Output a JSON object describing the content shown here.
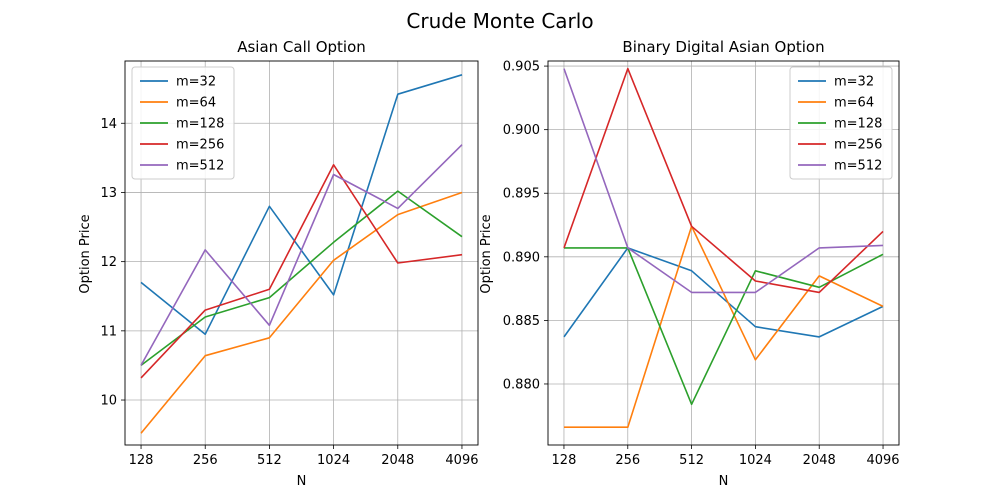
{
  "suptitle": "Crude Monte Carlo",
  "chart_data": [
    {
      "type": "line",
      "title": "Asian Call Option",
      "xlabel": "N",
      "ylabel": "Option Price",
      "x": [
        128,
        256,
        512,
        1024,
        2048,
        4096
      ],
      "x_tick_labels": [
        "128",
        "256",
        "512",
        "1024",
        "2048",
        "4096"
      ],
      "x_scale": "log2",
      "ylim": [
        9.35,
        14.9
      ],
      "y_ticks": [
        10,
        11,
        12,
        13,
        14
      ],
      "y_tick_labels": [
        "10",
        "11",
        "12",
        "13",
        "14"
      ],
      "grid": true,
      "legend_position": "upper-left",
      "series": [
        {
          "name": "m=32",
          "color": "#1f77b4",
          "values": [
            11.7,
            10.95,
            12.8,
            11.52,
            14.42,
            14.7
          ]
        },
        {
          "name": "m=64",
          "color": "#ff7f0e",
          "values": [
            9.52,
            10.64,
            10.9,
            12.02,
            12.68,
            13.0
          ]
        },
        {
          "name": "m=128",
          "color": "#2ca02c",
          "values": [
            10.5,
            11.2,
            11.48,
            12.28,
            13.02,
            12.36
          ]
        },
        {
          "name": "m=256",
          "color": "#d62728",
          "values": [
            10.32,
            11.3,
            11.6,
            13.4,
            11.98,
            12.1
          ]
        },
        {
          "name": "m=512",
          "color": "#9467bd",
          "values": [
            10.5,
            12.17,
            11.08,
            13.26,
            12.77,
            13.69
          ]
        }
      ]
    },
    {
      "type": "line",
      "title": "Binary Digital Asian Option",
      "xlabel": "N",
      "ylabel": "Option Price",
      "x": [
        128,
        256,
        512,
        1024,
        2048,
        4096
      ],
      "x_tick_labels": [
        "128",
        "256",
        "512",
        "1024",
        "2048",
        "4096"
      ],
      "x_scale": "log2",
      "ylim": [
        0.8752,
        0.9054
      ],
      "y_ticks": [
        0.88,
        0.885,
        0.89,
        0.895,
        0.9,
        0.905
      ],
      "y_tick_labels": [
        "0.880",
        "0.885",
        "0.890",
        "0.895",
        "0.900",
        "0.905"
      ],
      "grid": true,
      "legend_position": "upper-right",
      "series": [
        {
          "name": "m=32",
          "color": "#1f77b4",
          "values": [
            0.8837,
            0.8907,
            0.8889,
            0.8845,
            0.8837,
            0.8861
          ]
        },
        {
          "name": "m=64",
          "color": "#ff7f0e",
          "values": [
            0.8766,
            0.8766,
            0.8924,
            0.8819,
            0.8885,
            0.8861
          ]
        },
        {
          "name": "m=128",
          "color": "#2ca02c",
          "values": [
            0.8907,
            0.8907,
            0.8784,
            0.8889,
            0.8876,
            0.8902
          ]
        },
        {
          "name": "m=256",
          "color": "#d62728",
          "values": [
            0.8907,
            0.9048,
            0.8924,
            0.8881,
            0.8872,
            0.892
          ]
        },
        {
          "name": "m=512",
          "color": "#9467bd",
          "values": [
            0.9048,
            0.8907,
            0.8872,
            0.8872,
            0.8907,
            0.8909
          ]
        }
      ]
    }
  ]
}
